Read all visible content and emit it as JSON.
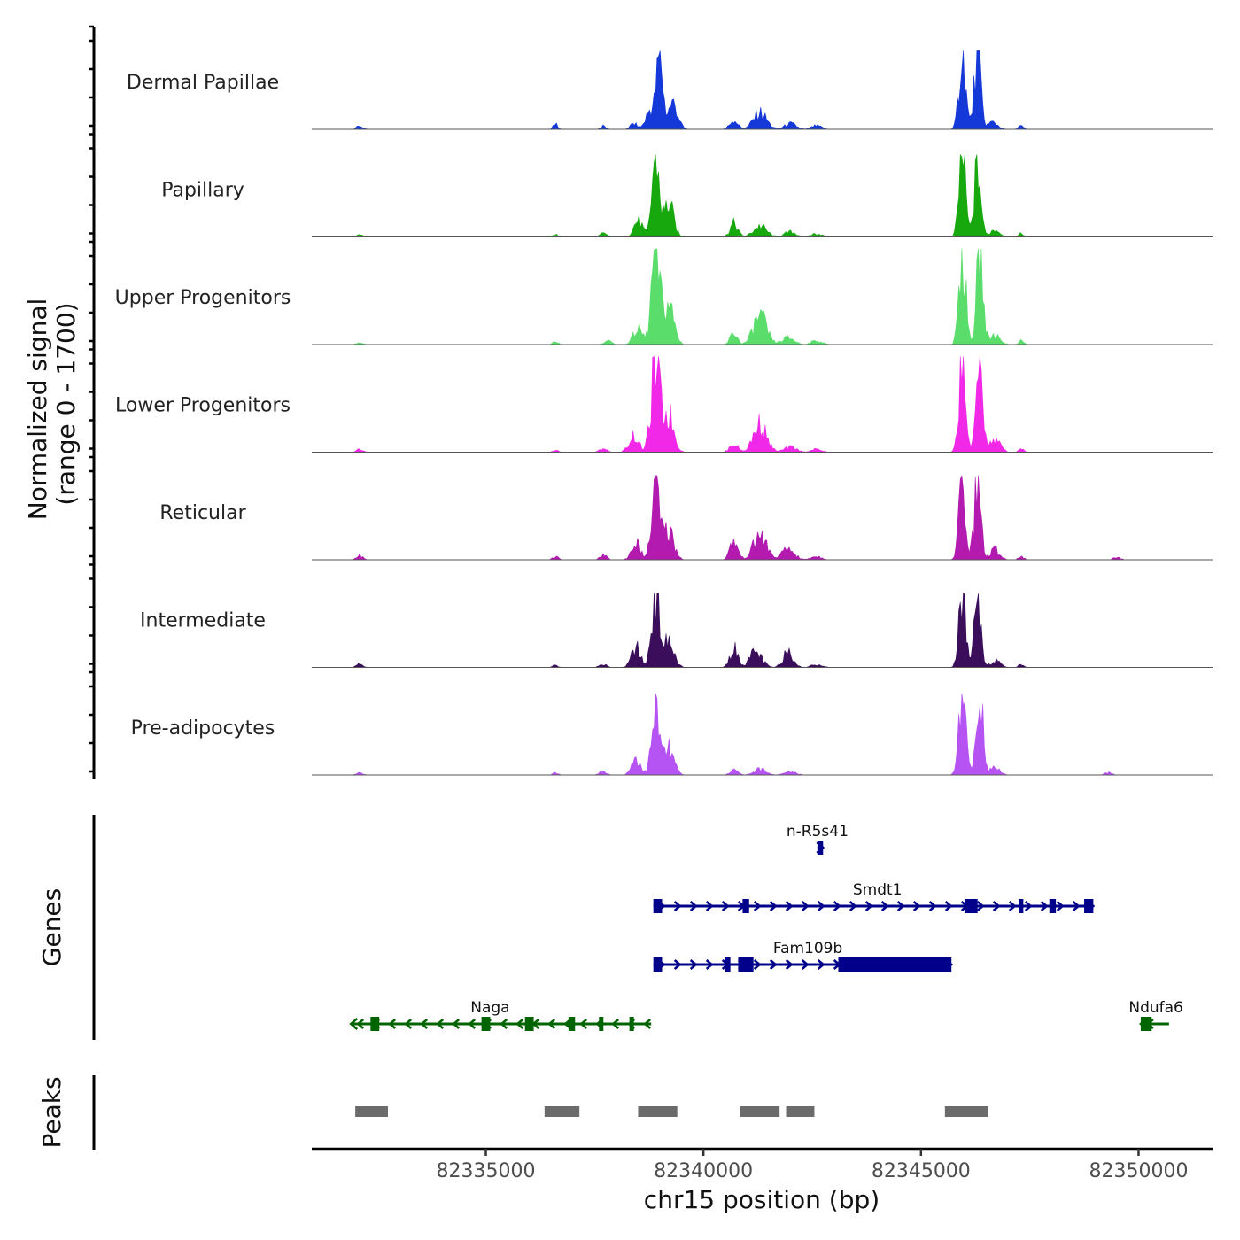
{
  "chart_data": {
    "type": "area",
    "chromosome": "chr15",
    "xlabel": "chr15 position (bp)",
    "xlim": [
      82331000,
      82351700
    ],
    "x_ticks": [
      82335000,
      82340000,
      82345000,
      82350000
    ],
    "x_tick_labels": [
      "82335000",
      "82340000",
      "82345000",
      "82350000"
    ],
    "ylabel_line1": "Normalized signal",
    "ylabel_line2": "(range 0 - 1700)",
    "ylim": [
      0,
      1700
    ],
    "series": [
      {
        "name": "Dermal Papillae",
        "color": "#1538d8",
        "scale": 0.82,
        "peaks": [
          [
            82332100,
            40,
            70
          ],
          [
            82336600,
            90,
            45
          ],
          [
            82337700,
            40,
            60
          ],
          [
            82338400,
            70,
            80
          ],
          [
            82338800,
            260,
            110
          ],
          [
            82339000,
            880,
            70
          ],
          [
            82339300,
            330,
            110
          ],
          [
            82340700,
            120,
            90
          ],
          [
            82341300,
            210,
            150
          ],
          [
            82342000,
            70,
            130
          ],
          [
            82342600,
            45,
            110
          ],
          [
            82345950,
            1000,
            75
          ],
          [
            82346300,
            950,
            75
          ],
          [
            82346650,
            90,
            110
          ],
          [
            82347300,
            40,
            60
          ]
        ]
      },
      {
        "name": "Papillary",
        "color": "#17a80e",
        "scale": 0.86,
        "peaks": [
          [
            82332100,
            30,
            70
          ],
          [
            82336600,
            30,
            60
          ],
          [
            82337700,
            40,
            80
          ],
          [
            82338500,
            200,
            100
          ],
          [
            82338900,
            1000,
            80
          ],
          [
            82339200,
            400,
            110
          ],
          [
            82340700,
            160,
            90
          ],
          [
            82341300,
            130,
            150
          ],
          [
            82342000,
            60,
            130
          ],
          [
            82342600,
            40,
            120
          ],
          [
            82345950,
            1000,
            75
          ],
          [
            82346300,
            850,
            75
          ],
          [
            82346700,
            90,
            110
          ],
          [
            82347300,
            40,
            60
          ]
        ]
      },
      {
        "name": "Upper Progenitors",
        "color": "#5bdd6c",
        "scale": 1.0,
        "peaks": [
          [
            82332100,
            20,
            70
          ],
          [
            82336600,
            30,
            60
          ],
          [
            82337800,
            40,
            80
          ],
          [
            82338500,
            160,
            110
          ],
          [
            82338900,
            1000,
            90
          ],
          [
            82339200,
            420,
            120
          ],
          [
            82340700,
            120,
            80
          ],
          [
            82341300,
            290,
            150
          ],
          [
            82341950,
            70,
            140
          ],
          [
            82342600,
            40,
            120
          ],
          [
            82345950,
            1000,
            75
          ],
          [
            82346350,
            960,
            75
          ],
          [
            82346700,
            100,
            120
          ],
          [
            82347300,
            40,
            60
          ]
        ]
      },
      {
        "name": "Lower Progenitors",
        "color": "#f228e8",
        "scale": 1.0,
        "peaks": [
          [
            82332100,
            30,
            70
          ],
          [
            82336600,
            20,
            60
          ],
          [
            82337700,
            40,
            80
          ],
          [
            82338400,
            170,
            110
          ],
          [
            82338900,
            880,
            100
          ],
          [
            82339200,
            380,
            120
          ],
          [
            82340700,
            90,
            90
          ],
          [
            82341300,
            290,
            150
          ],
          [
            82342000,
            50,
            140
          ],
          [
            82342600,
            30,
            120
          ],
          [
            82345950,
            1000,
            75
          ],
          [
            82346350,
            960,
            75
          ],
          [
            82346700,
            130,
            120
          ],
          [
            82347300,
            40,
            60
          ]
        ]
      },
      {
        "name": "Reticular",
        "color": "#b21ab0",
        "scale": 0.88,
        "peaks": [
          [
            82332100,
            50,
            70
          ],
          [
            82336600,
            40,
            60
          ],
          [
            82337700,
            50,
            80
          ],
          [
            82338450,
            200,
            100
          ],
          [
            82338900,
            830,
            90
          ],
          [
            82339200,
            350,
            120
          ],
          [
            82340700,
            220,
            90
          ],
          [
            82341300,
            290,
            150
          ],
          [
            82341950,
            130,
            140
          ],
          [
            82342600,
            40,
            120
          ],
          [
            82345950,
            950,
            75
          ],
          [
            82346300,
            930,
            75
          ],
          [
            82346700,
            120,
            110
          ],
          [
            82347300,
            40,
            60
          ],
          [
            82349500,
            30,
            80
          ]
        ]
      },
      {
        "name": "Intermediate",
        "color": "#3a0e5a",
        "scale": 0.78,
        "peaks": [
          [
            82332100,
            40,
            70
          ],
          [
            82336600,
            30,
            60
          ],
          [
            82337700,
            50,
            80
          ],
          [
            82338450,
            260,
            100
          ],
          [
            82338900,
            1000,
            90
          ],
          [
            82339200,
            330,
            120
          ],
          [
            82340700,
            250,
            90
          ],
          [
            82341200,
            200,
            140
          ],
          [
            82341950,
            240,
            110
          ],
          [
            82342600,
            40,
            120
          ],
          [
            82345950,
            980,
            75
          ],
          [
            82346300,
            980,
            75
          ],
          [
            82346700,
            90,
            110
          ],
          [
            82347300,
            40,
            60
          ]
        ]
      },
      {
        "name": "Pre-adipocytes",
        "color": "#b653f3",
        "scale": 0.85,
        "peaks": [
          [
            82332100,
            30,
            70
          ],
          [
            82336600,
            30,
            60
          ],
          [
            82337700,
            50,
            80
          ],
          [
            82338450,
            210,
            100
          ],
          [
            82338900,
            740,
            90
          ],
          [
            82339200,
            310,
            120
          ],
          [
            82340700,
            60,
            90
          ],
          [
            82341300,
            70,
            140
          ],
          [
            82342000,
            40,
            130
          ],
          [
            82345950,
            1000,
            80
          ],
          [
            82346350,
            960,
            80
          ],
          [
            82346700,
            90,
            110
          ],
          [
            82349300,
            30,
            80
          ]
        ]
      }
    ],
    "genes_title": "Genes",
    "genes": [
      {
        "name": "n-R5s41",
        "strand": "+",
        "color": "#00008b",
        "start": 82342620,
        "end": 82342750,
        "exons": [
          [
            82342620,
            82342750
          ]
        ],
        "row": 0,
        "label_pos": 82342620
      },
      {
        "name": "Smdt1",
        "strand": "+",
        "color": "#00008b",
        "start": 82338850,
        "end": 82348960,
        "exons": [
          [
            82338850,
            82339050
          ],
          [
            82340900,
            82341050
          ],
          [
            82346000,
            82346300
          ],
          [
            82347250,
            82347350
          ],
          [
            82347950,
            82348100
          ],
          [
            82348750,
            82348960
          ]
        ],
        "row": 1,
        "label_pos": 82344000
      },
      {
        "name": "Fam109b",
        "strand": "+",
        "color": "#00008b",
        "start": 82338850,
        "end": 82345700,
        "exons": [
          [
            82338850,
            82339050
          ],
          [
            82340500,
            82340620
          ],
          [
            82340800,
            82341150
          ],
          [
            82343100,
            82345700
          ]
        ],
        "row": 2,
        "label_pos": 82342400
      },
      {
        "name": "Naga",
        "strand": "-",
        "color": "#006400",
        "start": 82331900,
        "end": 82338800,
        "exons": [
          [
            82332350,
            82332550
          ],
          [
            82334900,
            82335100
          ],
          [
            82335900,
            82336100
          ],
          [
            82336900,
            82337050
          ],
          [
            82337600,
            82337700
          ],
          [
            82338300,
            82338400
          ]
        ],
        "row": 3,
        "label_pos": 82335100
      },
      {
        "name": "Ndufa6",
        "strand": "-",
        "color": "#006400",
        "start": 82350050,
        "end": 82350700,
        "exons": [
          [
            82350050,
            82350300
          ]
        ],
        "row": 3,
        "label_pos": 82350400
      }
    ],
    "peaks_title": "Peaks",
    "peaks_color": "#6b6b6b",
    "peak_regions": [
      [
        82332000,
        82332750
      ],
      [
        82336350,
        82337150
      ],
      [
        82338500,
        82339400
      ],
      [
        82340850,
        82341750
      ],
      [
        82341900,
        82342550
      ],
      [
        82345550,
        82346550
      ]
    ]
  }
}
